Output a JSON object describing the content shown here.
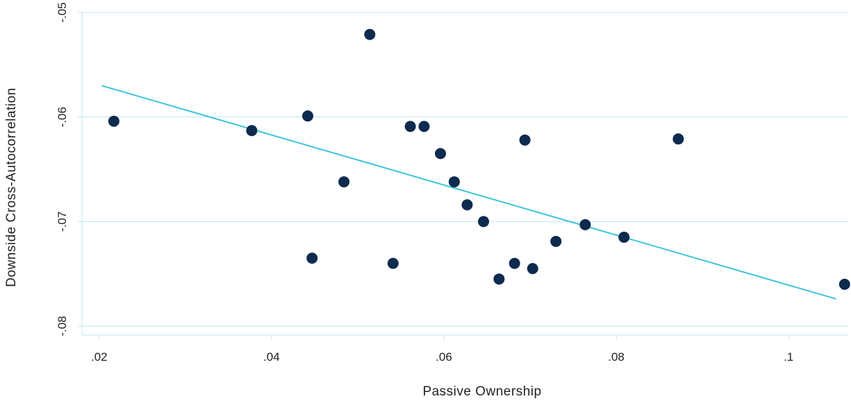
{
  "chart_data": {
    "type": "scatter",
    "title": "",
    "xlabel": "Passive Ownership",
    "ylabel": "Downside Cross-Autocorrelation",
    "xlim": [
      0.018,
      0.107
    ],
    "ylim": [
      -0.08,
      -0.05
    ],
    "x_ticks": [
      {
        "value": 0.02,
        "label": ".02"
      },
      {
        "value": 0.04,
        "label": ".04"
      },
      {
        "value": 0.06,
        "label": ".06"
      },
      {
        "value": 0.08,
        "label": ".08"
      },
      {
        "value": 0.1,
        "label": ".1"
      }
    ],
    "y_ticks": [
      {
        "value": -0.05,
        "label": "-.05"
      },
      {
        "value": -0.06,
        "label": "-.06"
      },
      {
        "value": -0.07,
        "label": "-.07"
      },
      {
        "value": -0.08,
        "label": "-.08"
      }
    ],
    "grid": "horizontal",
    "points": [
      {
        "x": 0.0217,
        "y": -0.0604
      },
      {
        "x": 0.0377,
        "y": -0.0613
      },
      {
        "x": 0.0442,
        "y": -0.0599
      },
      {
        "x": 0.0447,
        "y": -0.0735
      },
      {
        "x": 0.0484,
        "y": -0.0662
      },
      {
        "x": 0.0514,
        "y": -0.0521
      },
      {
        "x": 0.0541,
        "y": -0.074
      },
      {
        "x": 0.0561,
        "y": -0.0609
      },
      {
        "x": 0.0577,
        "y": -0.0609
      },
      {
        "x": 0.0596,
        "y": -0.0635
      },
      {
        "x": 0.0612,
        "y": -0.0662
      },
      {
        "x": 0.0627,
        "y": -0.0684
      },
      {
        "x": 0.0646,
        "y": -0.07
      },
      {
        "x": 0.0664,
        "y": -0.0755
      },
      {
        "x": 0.0682,
        "y": -0.074
      },
      {
        "x": 0.0694,
        "y": -0.0622
      },
      {
        "x": 0.0703,
        "y": -0.0745
      },
      {
        "x": 0.073,
        "y": -0.0719
      },
      {
        "x": 0.0764,
        "y": -0.0703
      },
      {
        "x": 0.0809,
        "y": -0.0715
      },
      {
        "x": 0.0872,
        "y": -0.0621
      },
      {
        "x": 0.1065,
        "y": -0.076
      }
    ],
    "trendline": {
      "x": [
        0.0203,
        0.1055
      ],
      "y": [
        -0.057,
        -0.0774
      ]
    },
    "colors": {
      "points": "#0d2a4f",
      "trendline": "#3cc3dc",
      "gridline": "#bfe6ee",
      "axis": "#bfe6ee",
      "text": "#222222"
    }
  }
}
